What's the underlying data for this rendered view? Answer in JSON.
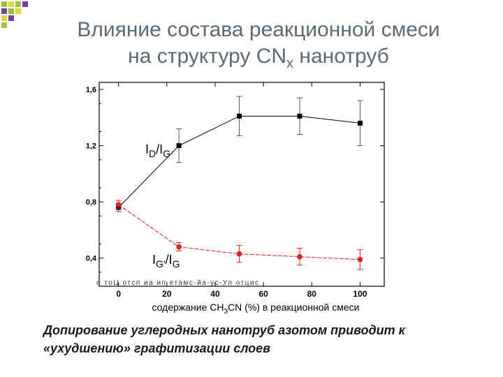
{
  "slide": {
    "title_line1": "Влияние состава реакционной смеси",
    "title_line2_prefix": "на структуру CN",
    "title_line2_sub": "x",
    "title_line2_suffix": " нанотруб",
    "caption_line1": "Допирование углеродных нанотруб азотом приводит к",
    "caption_line2": "«ухудшению» графитизации слоев"
  },
  "colors": {
    "title": "#5a6a78",
    "series_dg": "#000000",
    "series_gg": "#e0201b",
    "deco_green": "#9bc23c",
    "deco_yellow": "#e6d33a",
    "deco_purple": "#7b3fa0"
  },
  "chart_data": {
    "type": "line",
    "x": [
      0,
      25,
      50,
      75,
      100
    ],
    "xticks": [
      "0",
      "20",
      "40",
      "60",
      "80",
      "100"
    ],
    "xtick_values": [
      0,
      20,
      40,
      60,
      80,
      100
    ],
    "yticks": [
      "0,4",
      "0,8",
      "1,2",
      "1,6"
    ],
    "ytick_values": [
      0.4,
      0.8,
      1.2,
      1.6
    ],
    "xlim": [
      -8,
      110
    ],
    "ylim": [
      0.2,
      1.65
    ],
    "xlabel_prefix": "содержание CH",
    "xlabel_sub": "3",
    "xlabel_suffix": "CN (%) в реакционной смеси",
    "grid": false,
    "series": [
      {
        "name": "ID/IG",
        "name_parts": [
          "I",
          "D",
          "/I",
          "G"
        ],
        "color": "#000000",
        "marker": "square",
        "values": [
          0.76,
          1.2,
          1.41,
          1.41,
          1.36
        ],
        "errors": [
          0.03,
          0.12,
          0.14,
          0.13,
          0.16
        ]
      },
      {
        "name": "IG'/IG",
        "name_parts": [
          "I",
          "G'",
          "/I",
          "G"
        ],
        "color": "#e0201b",
        "marker": "circle",
        "values": [
          0.78,
          0.48,
          0.43,
          0.41,
          0.39
        ],
        "errors": [
          0.03,
          0.03,
          0.06,
          0.06,
          0.07
        ]
      }
    ],
    "garbled_rotated_label": "о тоЦ отсп иа ип етамс-йа-ус-Ул отцис"
  }
}
